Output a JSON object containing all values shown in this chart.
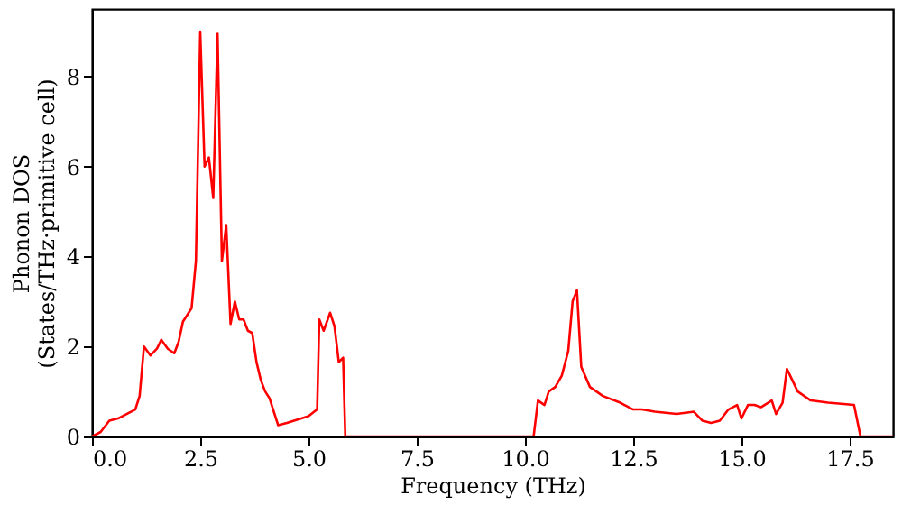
{
  "chart_data": {
    "type": "line",
    "xlabel": "Frequency (THz)",
    "ylabel": "Phonon DOS\n(States/THz·primitive cell)",
    "xlim": [
      0,
      18.5
    ],
    "ylim": [
      0,
      9.5
    ],
    "xticks": [
      {
        "value": 0,
        "label": "0.0"
      },
      {
        "value": 2.5,
        "label": "2.5"
      },
      {
        "value": 5,
        "label": "5.0"
      },
      {
        "value": 7.5,
        "label": "7.5"
      },
      {
        "value": 10,
        "label": "10.0"
      },
      {
        "value": 12.5,
        "label": "12.5"
      },
      {
        "value": 15,
        "label": "15.0"
      },
      {
        "value": 17.5,
        "label": "17.5"
      }
    ],
    "yticks": [
      0,
      2,
      4,
      6,
      8
    ],
    "grid": false,
    "line_style": "solid",
    "series": [
      {
        "color": "#ff0000",
        "x": [
          0,
          0.2,
          0.4,
          0.6,
          0.8,
          1.0,
          1.1,
          1.2,
          1.35,
          1.5,
          1.6,
          1.75,
          1.9,
          2.0,
          2.1,
          2.2,
          2.3,
          2.4,
          2.5,
          2.6,
          2.7,
          2.8,
          2.9,
          3.0,
          3.1,
          3.2,
          3.3,
          3.4,
          3.5,
          3.6,
          3.7,
          3.8,
          3.9,
          4.0,
          4.1,
          4.3,
          4.5,
          5.0,
          5.2,
          5.25,
          5.35,
          5.5,
          5.6,
          5.7,
          5.8,
          5.85,
          10.2,
          10.3,
          10.45,
          10.55,
          10.7,
          10.85,
          11.0,
          11.1,
          11.2,
          11.3,
          11.5,
          11.8,
          12.2,
          12.5,
          12.7,
          13.0,
          13.5,
          13.9,
          14.1,
          14.3,
          14.5,
          14.7,
          14.9,
          15.0,
          15.15,
          15.3,
          15.45,
          15.7,
          15.8,
          15.95,
          16.05,
          16.3,
          16.6,
          17.0,
          17.6,
          17.75,
          18.5
        ],
        "values": [
          0,
          0.1,
          0.35,
          0.4,
          0.5,
          0.6,
          0.9,
          2.0,
          1.8,
          1.95,
          2.15,
          1.95,
          1.85,
          2.1,
          2.55,
          2.7,
          2.85,
          3.9,
          9.0,
          6.0,
          6.2,
          5.3,
          8.95,
          3.9,
          4.7,
          2.5,
          3.0,
          2.6,
          2.6,
          2.35,
          2.3,
          1.65,
          1.25,
          1.0,
          0.85,
          0.25,
          0.3,
          0.45,
          0.6,
          2.6,
          2.35,
          2.75,
          2.45,
          1.65,
          1.75,
          0,
          0,
          0.8,
          0.7,
          1.0,
          1.1,
          1.35,
          1.9,
          3.0,
          3.25,
          1.55,
          1.1,
          0.9,
          0.75,
          0.6,
          0.6,
          0.55,
          0.5,
          0.55,
          0.35,
          0.3,
          0.35,
          0.6,
          0.7,
          0.4,
          0.7,
          0.7,
          0.65,
          0.8,
          0.5,
          0.75,
          1.5,
          1.0,
          0.8,
          0.75,
          0.7,
          0,
          0
        ]
      }
    ]
  }
}
